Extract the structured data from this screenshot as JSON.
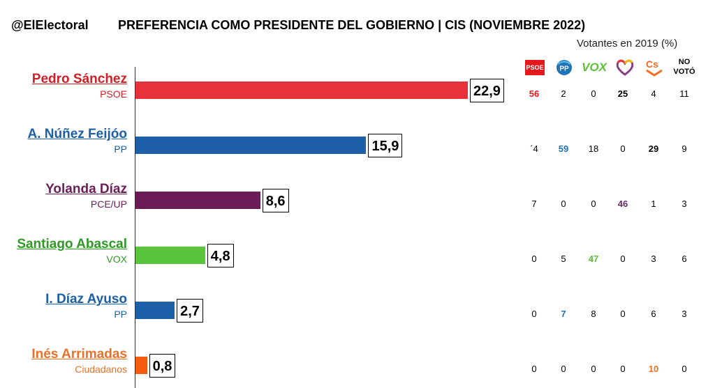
{
  "header": {
    "brand": "@ElElectoral",
    "title": "PREFERENCIA COMO PRESIDENTE DEL GOBIERNO |   CIS (NOVIEMBRE 2022)"
  },
  "table": {
    "subtitle": "Votantes en 2019 (%)",
    "columns": [
      {
        "key": "psoe",
        "label": "PSOE",
        "icon": "psoe-logo-icon",
        "color": "#e3191e"
      },
      {
        "key": "pp",
        "label": "PP",
        "icon": "pp-logo-icon",
        "color": "#1f73b7"
      },
      {
        "key": "vox",
        "label": "VOX",
        "icon": "vox-logo-icon",
        "color": "#5ac035"
      },
      {
        "key": "up",
        "label": "",
        "icon": "unidas-podemos-heart-icon",
        "color": "#6b2b67"
      },
      {
        "key": "cs",
        "label": "Cs",
        "icon": "ciudadanos-logo-icon",
        "color": "#f26c22"
      },
      {
        "key": "novoto",
        "label": "NO VOTÓ",
        "icon": "",
        "color": "#000000"
      }
    ]
  },
  "chart_data": {
    "type": "bar",
    "orientation": "horizontal",
    "title": "PREFERENCIA COMO PRESIDENTE DEL GOBIERNO |   CIS (NOVIEMBRE 2022)",
    "categories": [
      "Pedro Sánchez",
      "A. Núñez Feijóo",
      "Yolanda Díaz",
      "Santiago Abascal",
      "I. Díaz Ayuso",
      "Inés Arrimadas"
    ],
    "values": [
      22.9,
      15.9,
      8.6,
      4.8,
      2.7,
      0.8
    ],
    "xlim": [
      0,
      27.5
    ],
    "rows": [
      {
        "name": "Pedro Sánchez",
        "party": "PSOE",
        "value": 22.9,
        "label": "22,9",
        "color": "#e8323a",
        "name_color": "#d11f26",
        "breakdown": [
          "56",
          "2",
          "0",
          "25",
          "4",
          "11"
        ],
        "bold": [
          0,
          3
        ]
      },
      {
        "name": "A. Núñez Feijóo",
        "party": "PP",
        "value": 15.9,
        "label": "15,9",
        "color": "#1d60a8",
        "name_color": "#1d5fa6",
        "breakdown": [
          "´4",
          "59",
          "18",
          "0",
          "29",
          "9"
        ],
        "bold": [
          1,
          4
        ]
      },
      {
        "name": "Yolanda Díaz",
        "party": "PCE/UP",
        "value": 8.6,
        "label": "8,6",
        "color": "#6b1b55",
        "name_color": "#6b1e58",
        "breakdown": [
          "7",
          "0",
          "0",
          "46",
          "1",
          "3"
        ],
        "bold": [
          3
        ]
      },
      {
        "name": "Santiago Abascal",
        "party": "VOX",
        "value": 4.8,
        "label": "4,8",
        "color": "#5ac43c",
        "name_color": "#2e9a23",
        "breakdown": [
          "0",
          "5",
          "47",
          "0",
          "3",
          "6"
        ],
        "bold": [
          2
        ]
      },
      {
        "name": "I. Díaz Ayuso",
        "party": "PP",
        "value": 2.7,
        "label": "2,7",
        "color": "#1d60a8",
        "name_color": "#1d5fa6",
        "breakdown": [
          "0",
          "7",
          "8",
          "0",
          "6",
          "3"
        ],
        "bold": [
          1
        ]
      },
      {
        "name": "Inés Arrimadas",
        "party": "Ciudadanos",
        "value": 0.8,
        "label": "0,8",
        "color": "#f35b10",
        "name_color": "#e9712a",
        "breakdown": [
          "0",
          "0",
          "0",
          "0",
          "10",
          "0"
        ],
        "bold": [
          4
        ]
      }
    ]
  }
}
